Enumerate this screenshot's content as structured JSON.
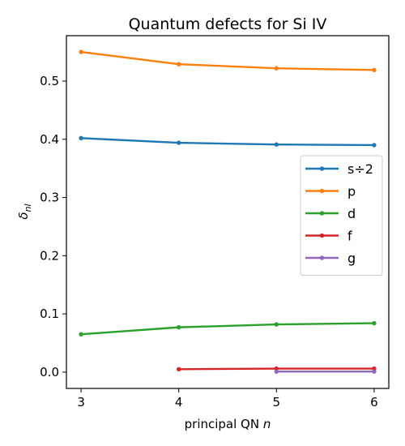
{
  "chart_data": {
    "type": "line",
    "title": "Quantum defects for Si IV",
    "xlabel_text": "principal QN ",
    "xlabel_var": "n",
    "ylabel_main": "δ",
    "ylabel_sub": "nl",
    "xlim": [
      2.85,
      6.15
    ],
    "ylim": [
      -0.028,
      0.578
    ],
    "xticks": [
      3,
      4,
      5,
      6
    ],
    "yticks": [
      0.0,
      0.1,
      0.2,
      0.3,
      0.4,
      0.5
    ],
    "ytick_labels": [
      "0.0",
      "0.1",
      "0.2",
      "0.3",
      "0.4",
      "0.5"
    ],
    "grid": false,
    "legend_position": "center-right",
    "series": [
      {
        "name": "s÷2",
        "color": "#1f77b4",
        "x": [
          3,
          4,
          5,
          6
        ],
        "y": [
          0.402,
          0.394,
          0.391,
          0.39
        ]
      },
      {
        "name": "p",
        "color": "#ff7f0e",
        "x": [
          3,
          4,
          5,
          6
        ],
        "y": [
          0.55,
          0.529,
          0.522,
          0.519
        ]
      },
      {
        "name": "d",
        "color": "#2ca02c",
        "x": [
          3,
          4,
          5,
          6
        ],
        "y": [
          0.065,
          0.077,
          0.082,
          0.084
        ]
      },
      {
        "name": "f",
        "color": "#d62728",
        "x": [
          4,
          5,
          6
        ],
        "y": [
          0.005,
          0.006,
          0.006
        ]
      },
      {
        "name": "g",
        "color": "#9467bd",
        "x": [
          5,
          6
        ],
        "y": [
          0.001,
          0.001
        ]
      }
    ]
  }
}
